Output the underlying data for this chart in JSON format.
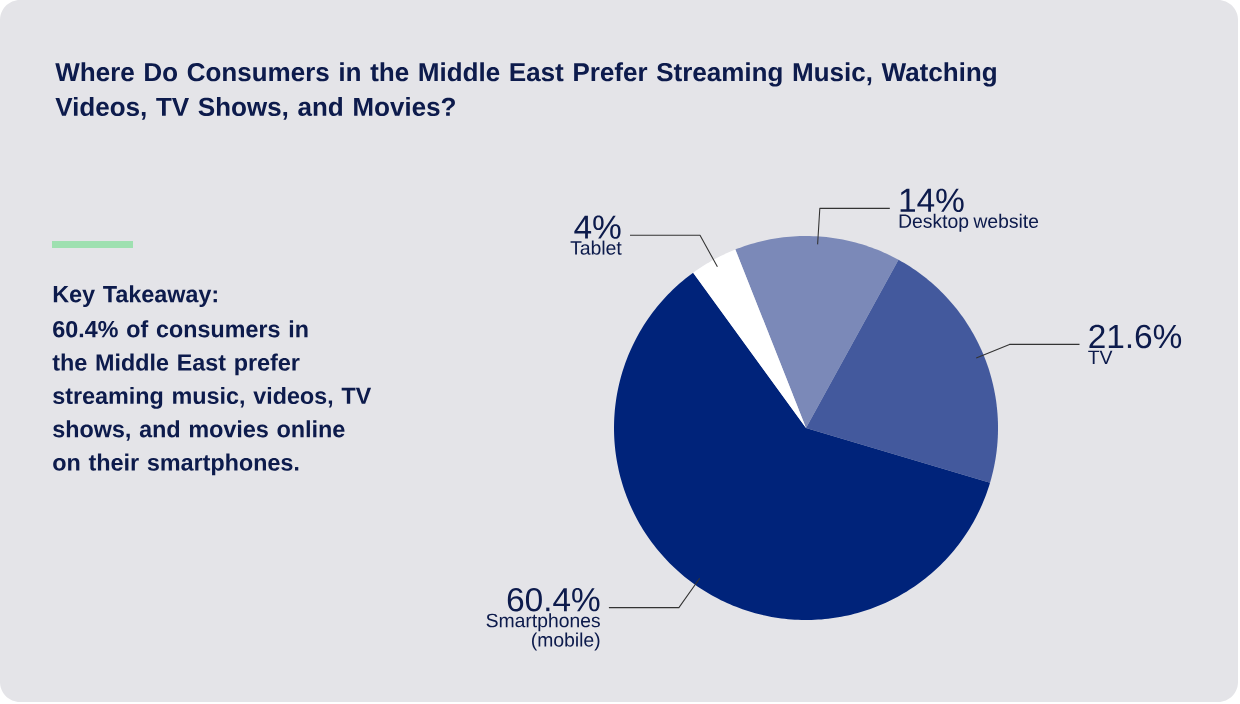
{
  "chart_data": {
    "type": "pie",
    "title": "Where Do Consumers in the Middle East Prefer Streaming Music, Watching Videos, TV Shows, and Movies?",
    "categories": [
      "Desktop website",
      "TV",
      "Smartphones (mobile)",
      "Tablet"
    ],
    "values": [
      14,
      21.6,
      60.4,
      4
    ],
    "value_labels": [
      "14%",
      "21.6%",
      "60.4%",
      "4%"
    ],
    "colors": [
      "#7b89b8",
      "#43599d",
      "#00237a",
      "#ffffff"
    ],
    "annotations": [
      "Key Takeaway:",
      "60.4% of consumers in the Middle East prefer streaming music, videos, TV shows, and movies online on their smartphones."
    ]
  }
}
